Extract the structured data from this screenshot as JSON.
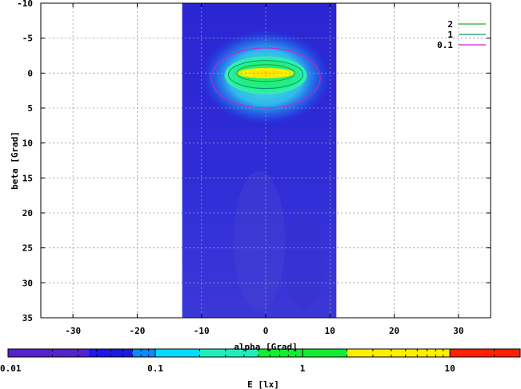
{
  "chart_data": {
    "type": "heatmap",
    "title": "",
    "xlabel": "alpha [Grad]",
    "ylabel": "beta [Grad]",
    "xlim": [
      -35,
      35
    ],
    "ylim": [
      -10,
      35
    ],
    "y_inverted": true,
    "x_ticks": [
      -30,
      -20,
      -10,
      0,
      10,
      20,
      30
    ],
    "y_ticks": [
      -10,
      -5,
      0,
      5,
      10,
      15,
      20,
      25,
      30,
      35
    ],
    "grid": true,
    "data_extent": {
      "alpha": [
        -13,
        11
      ],
      "beta": [
        -10,
        35
      ]
    },
    "peak": {
      "alpha": 0,
      "beta": 0,
      "E": 5
    },
    "background_E": 0.02,
    "contours": [
      {
        "name": "2",
        "level": 2,
        "color": "#22aa33",
        "half_width_alpha": 4.5,
        "half_height_beta": 1.2,
        "center": [
          0,
          0
        ]
      },
      {
        "name": "1",
        "level": 1,
        "color": "#119977",
        "half_width_alpha": 5.8,
        "half_height_beta": 2.0,
        "center": [
          0,
          0.2
        ]
      },
      {
        "name": "0.1",
        "level": 0.1,
        "color": "#cc22cc",
        "half_width_alpha": 8.5,
        "half_height_beta": 4.3,
        "center": [
          0,
          0.7
        ]
      }
    ],
    "legend": {
      "placement": "top-right",
      "entries": [
        "2",
        "1",
        "0.1"
      ]
    },
    "colorbar": {
      "label": "E [lx]",
      "scale": "log",
      "range": [
        0.01,
        30
      ],
      "tick_labels": [
        "0.01",
        "0.1",
        "1",
        "10"
      ],
      "tick_values": [
        0.01,
        0.1,
        1,
        10
      ],
      "color_bands": [
        {
          "from": 0.01,
          "to": 0.035,
          "color": "#5522cc"
        },
        {
          "from": 0.035,
          "to": 0.07,
          "color": "#1a1ae6"
        },
        {
          "from": 0.07,
          "to": 0.1,
          "color": "#0a88ff"
        },
        {
          "from": 0.1,
          "to": 0.2,
          "color": "#00ddff"
        },
        {
          "from": 0.2,
          "to": 0.5,
          "color": "#22eebb"
        },
        {
          "from": 0.5,
          "to": 2,
          "color": "#11ee33"
        },
        {
          "from": 2,
          "to": 10,
          "color": "#ffee00"
        },
        {
          "from": 10,
          "to": 30,
          "color": "#ff2200"
        }
      ]
    }
  }
}
